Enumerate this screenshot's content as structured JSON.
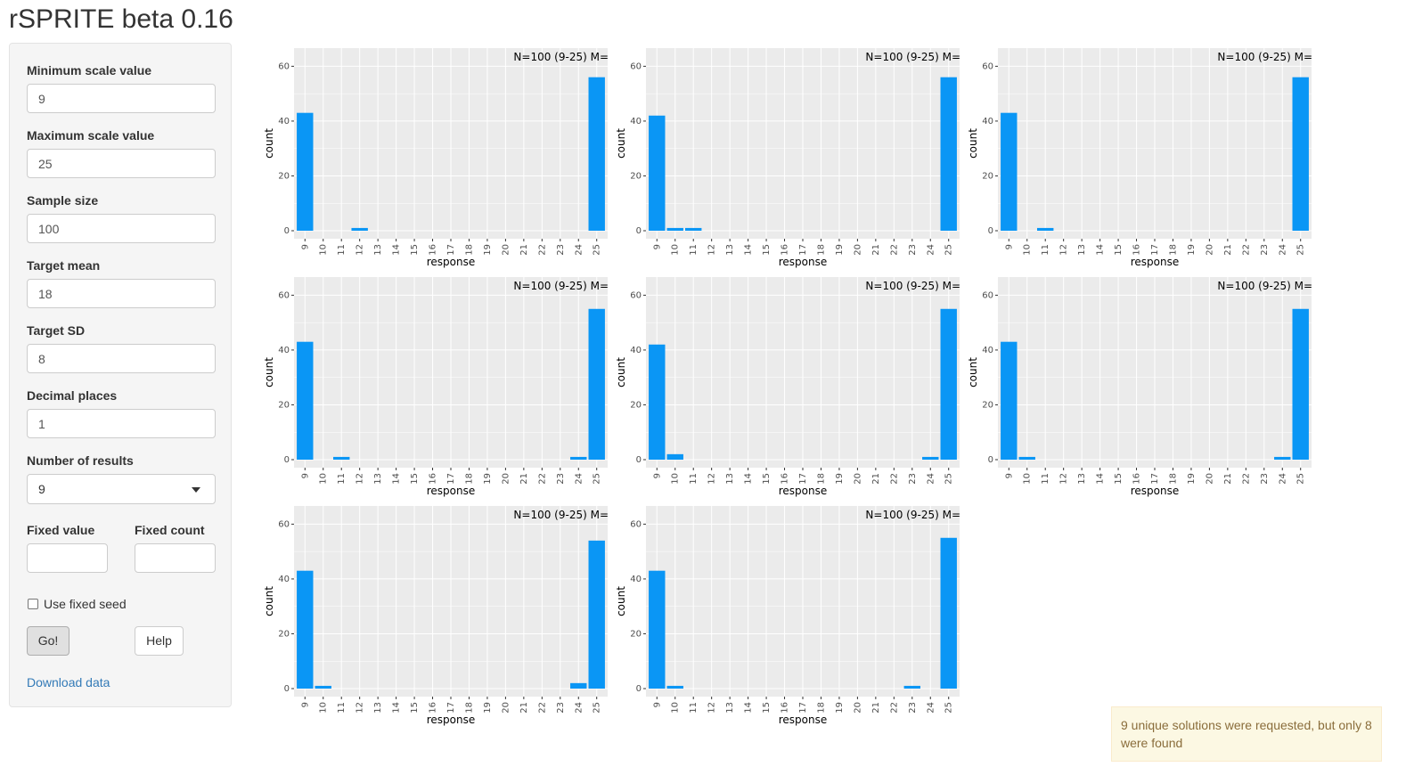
{
  "app": {
    "title": "rSPRITE beta 0.16"
  },
  "sidebar": {
    "min_scale": {
      "label": "Minimum scale value",
      "value": "9"
    },
    "max_scale": {
      "label": "Maximum scale value",
      "value": "25"
    },
    "sample_size": {
      "label": "Sample size",
      "value": "100"
    },
    "target_mean": {
      "label": "Target mean",
      "value": "18"
    },
    "target_sd": {
      "label": "Target SD",
      "value": "8"
    },
    "decimal_places": {
      "label": "Decimal places",
      "value": "1"
    },
    "num_results": {
      "label": "Number of results",
      "value": "9"
    },
    "fixed_value": {
      "label": "Fixed value",
      "value": ""
    },
    "fixed_count": {
      "label": "Fixed count",
      "value": ""
    },
    "fixed_seed_label": "Use fixed seed",
    "go_label": "Go!",
    "help_label": "Help",
    "download_label": "Download data"
  },
  "notification": {
    "text": "9 unique solutions were requested, but only 8 were found"
  },
  "colors": {
    "bar": "#0a96f5",
    "panel": "#ebebeb",
    "grid": "#ffffff"
  },
  "chart_data": [
    {
      "type": "bar",
      "title": "N=100 (9-25) M=",
      "xlabel": "response",
      "ylabel": "count",
      "categories": [
        "9",
        "10",
        "11",
        "12",
        "13",
        "14",
        "15",
        "16",
        "17",
        "18",
        "19",
        "20",
        "21",
        "22",
        "23",
        "24",
        "25"
      ],
      "values": [
        43,
        0,
        0,
        1,
        0,
        0,
        0,
        0,
        0,
        0,
        0,
        0,
        0,
        0,
        0,
        0,
        56
      ],
      "ylim": [
        0,
        65
      ],
      "yticks": [
        0,
        20,
        40,
        60
      ]
    },
    {
      "type": "bar",
      "title": "N=100 (9-25) M=",
      "xlabel": "response",
      "ylabel": "count",
      "categories": [
        "9",
        "10",
        "11",
        "12",
        "13",
        "14",
        "15",
        "16",
        "17",
        "18",
        "19",
        "20",
        "21",
        "22",
        "23",
        "24",
        "25"
      ],
      "values": [
        42,
        1,
        1,
        0,
        0,
        0,
        0,
        0,
        0,
        0,
        0,
        0,
        0,
        0,
        0,
        0,
        56
      ],
      "ylim": [
        0,
        65
      ],
      "yticks": [
        0,
        20,
        40,
        60
      ]
    },
    {
      "type": "bar",
      "title": "N=100 (9-25) M=",
      "xlabel": "response",
      "ylabel": "count",
      "categories": [
        "9",
        "10",
        "11",
        "12",
        "13",
        "14",
        "15",
        "16",
        "17",
        "18",
        "19",
        "20",
        "21",
        "22",
        "23",
        "24",
        "25"
      ],
      "values": [
        43,
        0,
        1,
        0,
        0,
        0,
        0,
        0,
        0,
        0,
        0,
        0,
        0,
        0,
        0,
        0,
        56
      ],
      "ylim": [
        0,
        65
      ],
      "yticks": [
        0,
        20,
        40,
        60
      ]
    },
    {
      "type": "bar",
      "title": "N=100 (9-25) M=",
      "xlabel": "response",
      "ylabel": "count",
      "categories": [
        "9",
        "10",
        "11",
        "12",
        "13",
        "14",
        "15",
        "16",
        "17",
        "18",
        "19",
        "20",
        "21",
        "22",
        "23",
        "24",
        "25"
      ],
      "values": [
        43,
        0,
        1,
        0,
        0,
        0,
        0,
        0,
        0,
        0,
        0,
        0,
        0,
        0,
        0,
        1,
        55
      ],
      "ylim": [
        0,
        65
      ],
      "yticks": [
        0,
        20,
        40,
        60
      ]
    },
    {
      "type": "bar",
      "title": "N=100 (9-25) M=",
      "xlabel": "response",
      "ylabel": "count",
      "categories": [
        "9",
        "10",
        "11",
        "12",
        "13",
        "14",
        "15",
        "16",
        "17",
        "18",
        "19",
        "20",
        "21",
        "22",
        "23",
        "24",
        "25"
      ],
      "values": [
        42,
        2,
        0,
        0,
        0,
        0,
        0,
        0,
        0,
        0,
        0,
        0,
        0,
        0,
        0,
        1,
        55
      ],
      "ylim": [
        0,
        65
      ],
      "yticks": [
        0,
        20,
        40,
        60
      ]
    },
    {
      "type": "bar",
      "title": "N=100 (9-25) M=",
      "xlabel": "response",
      "ylabel": "count",
      "categories": [
        "9",
        "10",
        "11",
        "12",
        "13",
        "14",
        "15",
        "16",
        "17",
        "18",
        "19",
        "20",
        "21",
        "22",
        "23",
        "24",
        "25"
      ],
      "values": [
        43,
        1,
        0,
        0,
        0,
        0,
        0,
        0,
        0,
        0,
        0,
        0,
        0,
        0,
        0,
        1,
        55
      ],
      "ylim": [
        0,
        65
      ],
      "yticks": [
        0,
        20,
        40,
        60
      ]
    },
    {
      "type": "bar",
      "title": "N=100 (9-25) M=",
      "xlabel": "response",
      "ylabel": "count",
      "categories": [
        "9",
        "10",
        "11",
        "12",
        "13",
        "14",
        "15",
        "16",
        "17",
        "18",
        "19",
        "20",
        "21",
        "22",
        "23",
        "24",
        "25"
      ],
      "values": [
        43,
        1,
        0,
        0,
        0,
        0,
        0,
        0,
        0,
        0,
        0,
        0,
        0,
        0,
        0,
        2,
        54
      ],
      "ylim": [
        0,
        65
      ],
      "yticks": [
        0,
        20,
        40,
        60
      ]
    },
    {
      "type": "bar",
      "title": "N=100 (9-25) M=",
      "xlabel": "response",
      "ylabel": "count",
      "categories": [
        "9",
        "10",
        "11",
        "12",
        "13",
        "14",
        "15",
        "16",
        "17",
        "18",
        "19",
        "20",
        "21",
        "22",
        "23",
        "24",
        "25"
      ],
      "values": [
        43,
        1,
        0,
        0,
        0,
        0,
        0,
        0,
        0,
        0,
        0,
        0,
        0,
        0,
        1,
        0,
        55
      ],
      "ylim": [
        0,
        65
      ],
      "yticks": [
        0,
        20,
        40,
        60
      ]
    }
  ]
}
